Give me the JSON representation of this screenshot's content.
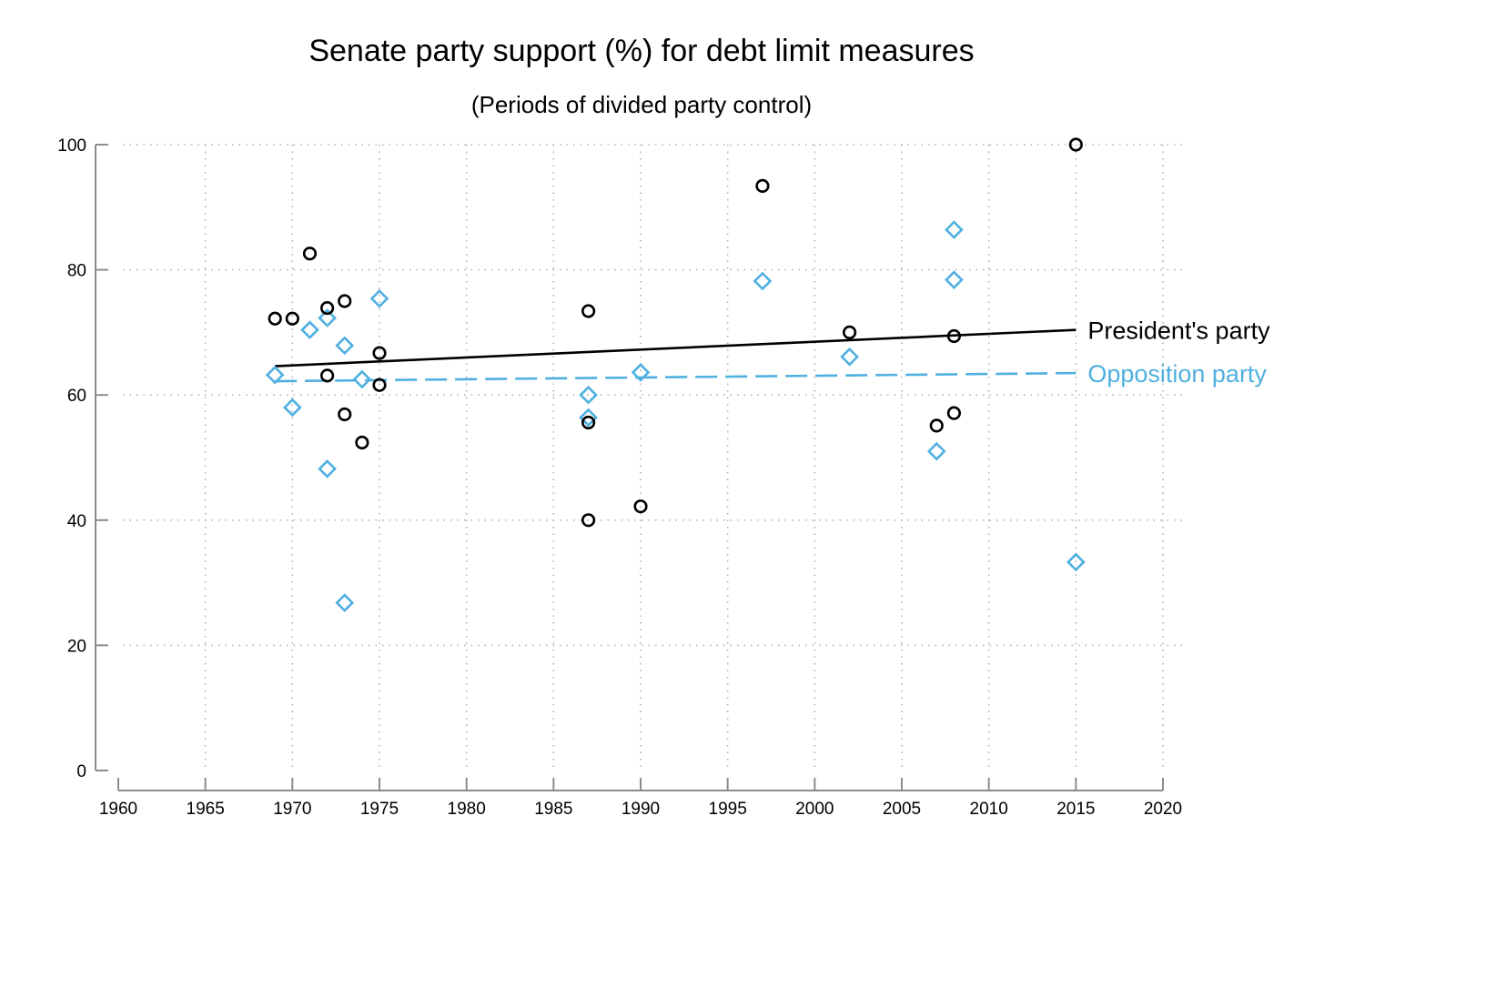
{
  "chart_data": {
    "type": "scatter",
    "title": "Senate party support (%) for debt limit measures",
    "subtitle": "(Periods of divided party control)",
    "xlabel": "",
    "ylabel": "",
    "xlim": [
      1960,
      2020
    ],
    "ylim": [
      0,
      100
    ],
    "x_ticks": [
      "1960",
      "1965",
      "1970",
      "1975",
      "1980",
      "1985",
      "1990",
      "1995",
      "2000",
      "2005",
      "2010",
      "2015",
      "2020"
    ],
    "y_ticks": [
      "0",
      "20",
      "40",
      "60",
      "80",
      "100"
    ],
    "grid": true,
    "series": [
      {
        "name": "President's party",
        "color": "#000000",
        "marker": "circle",
        "trendline": {
          "x": [
            1969,
            2015
          ],
          "y": [
            64.6,
            70.4
          ],
          "style": "solid"
        },
        "points": [
          {
            "x": 1969,
            "y": 72.2
          },
          {
            "x": 1970,
            "y": 72.2
          },
          {
            "x": 1971,
            "y": 82.6
          },
          {
            "x": 1972,
            "y": 73.9
          },
          {
            "x": 1972,
            "y": 63.1
          },
          {
            "x": 1973,
            "y": 75.0
          },
          {
            "x": 1973,
            "y": 56.9
          },
          {
            "x": 1974,
            "y": 52.4
          },
          {
            "x": 1975,
            "y": 66.7
          },
          {
            "x": 1975,
            "y": 61.6
          },
          {
            "x": 1987,
            "y": 73.4
          },
          {
            "x": 1987,
            "y": 55.6
          },
          {
            "x": 1987,
            "y": 40.0
          },
          {
            "x": 1990,
            "y": 42.2
          },
          {
            "x": 1997,
            "y": 93.4
          },
          {
            "x": 2002,
            "y": 70.0
          },
          {
            "x": 2007,
            "y": 55.1
          },
          {
            "x": 2008,
            "y": 69.4
          },
          {
            "x": 2008,
            "y": 57.1
          },
          {
            "x": 2015,
            "y": 100.0
          }
        ]
      },
      {
        "name": "Opposition party",
        "color": "#4fb0e0",
        "marker": "diamond",
        "trendline": {
          "x": [
            1969,
            2015
          ],
          "y": [
            62.2,
            63.5
          ],
          "style": "dashed"
        },
        "points": [
          {
            "x": 1969,
            "y": 63.2
          },
          {
            "x": 1970,
            "y": 58.0
          },
          {
            "x": 1971,
            "y": 70.4
          },
          {
            "x": 1972,
            "y": 72.3
          },
          {
            "x": 1972,
            "y": 48.2
          },
          {
            "x": 1973,
            "y": 67.9
          },
          {
            "x": 1973,
            "y": 26.8
          },
          {
            "x": 1974,
            "y": 62.5
          },
          {
            "x": 1975,
            "y": 75.4
          },
          {
            "x": 1987,
            "y": 60.0
          },
          {
            "x": 1987,
            "y": 56.4
          },
          {
            "x": 1990,
            "y": 63.6
          },
          {
            "x": 1997,
            "y": 78.2
          },
          {
            "x": 2002,
            "y": 66.1
          },
          {
            "x": 2007,
            "y": 51.0
          },
          {
            "x": 2008,
            "y": 86.4
          },
          {
            "x": 2008,
            "y": 78.4
          },
          {
            "x": 2015,
            "y": 33.3
          }
        ]
      }
    ]
  }
}
